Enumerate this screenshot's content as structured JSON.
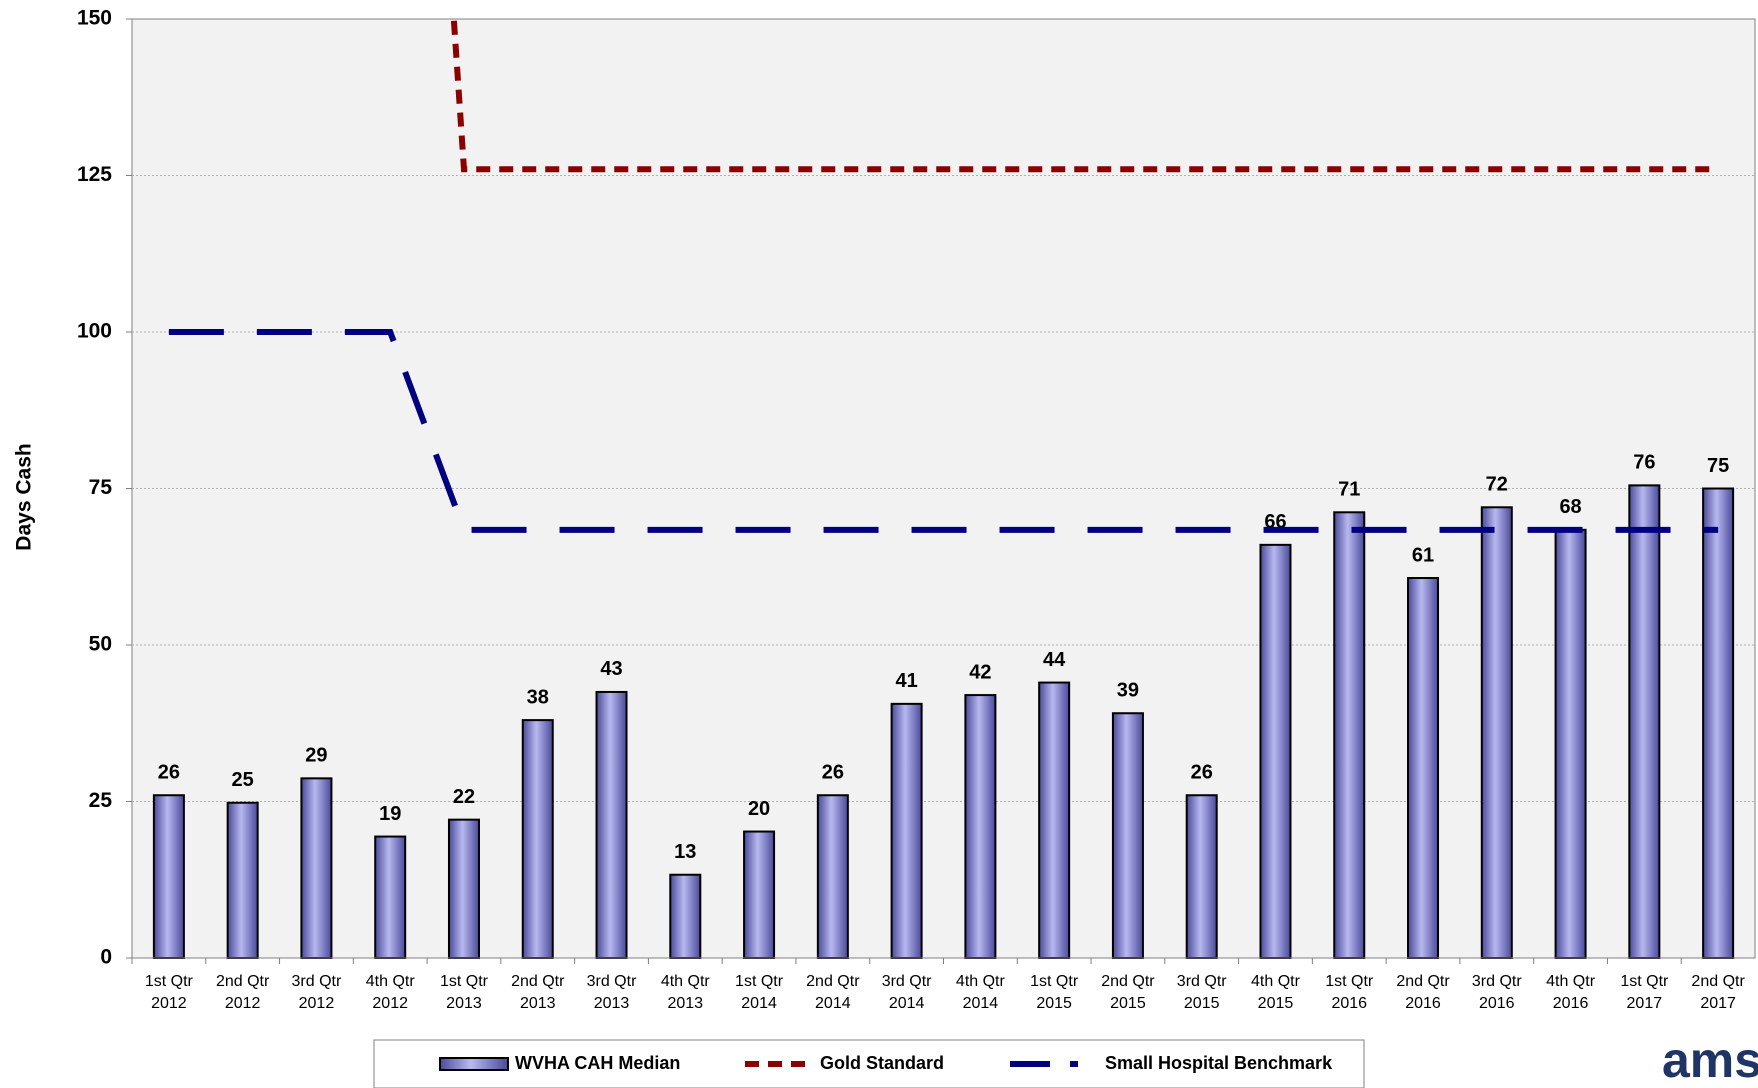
{
  "chart_data": {
    "type": "bar",
    "y_label": "Days Cash",
    "logo_text": "ams",
    "categories": [
      "1st Qtr 2012",
      "2nd Qtr 2012",
      "3rd Qtr 2012",
      "4th Qtr 2012",
      "1st Qtr 2013",
      "2nd Qtr 2013",
      "3rd Qtr 2013",
      "4th Qtr 2013",
      "1st Qtr 2014",
      "2nd Qtr 2014",
      "3rd Qtr 2014",
      "4th Qtr 2014",
      "1st Qtr 2015",
      "2nd Qtr 2015",
      "3rd Qtr 2015",
      "4th Qtr 2015",
      "1st Qtr 2016",
      "2nd Qtr 2016",
      "3rd Qtr 2016",
      "4th Qtr 2016",
      "1st Qtr 2017",
      "2nd Qtr 2017"
    ],
    "series": [
      {
        "name": "WVHA CAH Median",
        "mark": "bar",
        "color": "#7b7bd0",
        "values": [
          26.0,
          24.8,
          28.7,
          19.4,
          22.1,
          38.0,
          42.5,
          13.3,
          20.2,
          26.0,
          40.6,
          42.0,
          44.0,
          39.1,
          26.0,
          66.0,
          71.2,
          60.7,
          72.0,
          68.4,
          75.5,
          75.0
        ],
        "value_labels": [
          "26",
          "25",
          "29",
          "19",
          "22",
          "38",
          "43",
          "13",
          "20",
          "26",
          "41",
          "42",
          "44",
          "39",
          "26",
          "66",
          "71",
          "61",
          "72",
          "68",
          "76",
          "75"
        ]
      },
      {
        "name": "Gold Standard",
        "mark": "line",
        "color": "#8b0000",
        "dash": "14 9",
        "values": [
          null,
          null,
          null,
          300,
          126,
          126,
          126,
          126,
          126,
          126,
          126,
          126,
          126,
          126,
          126,
          126,
          126,
          126,
          126,
          126,
          126,
          126
        ]
      },
      {
        "name": "Small Hospital Benchmark",
        "mark": "line",
        "color": "#000080",
        "dash": "55 33",
        "values": [
          100,
          100,
          100,
          100,
          68.4,
          68.4,
          68.4,
          68.4,
          68.4,
          68.4,
          68.4,
          68.4,
          68.4,
          68.4,
          68.4,
          68.4,
          68.4,
          68.4,
          68.4,
          68.4,
          68.4,
          68.4
        ]
      }
    ],
    "ylim": [
      0,
      150
    ],
    "yticks": [
      0,
      25,
      50,
      75,
      100,
      125,
      150
    ],
    "grid": true
  }
}
